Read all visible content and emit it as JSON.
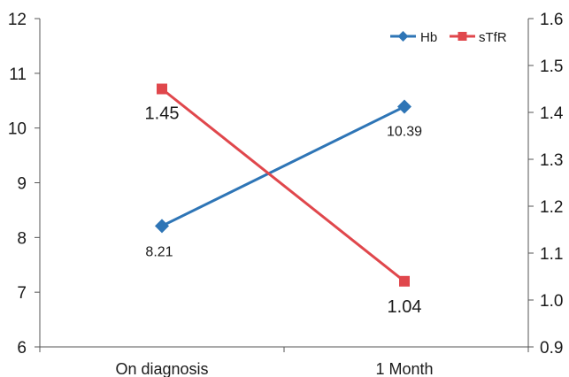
{
  "chart_data": {
    "type": "line",
    "categories": [
      "On diagnosis",
      "1 Month"
    ],
    "series": [
      {
        "name": "Hb",
        "axis": "left",
        "values": [
          8.21,
          10.39
        ],
        "color": "#2e75b6",
        "marker": "diamond",
        "labels": [
          "8.21",
          "10.39"
        ]
      },
      {
        "name": "sTfR",
        "axis": "right",
        "values": [
          1.45,
          1.04
        ],
        "color": "#e0474c",
        "marker": "square",
        "labels": [
          "1.45",
          "1.04"
        ]
      }
    ],
    "y_left": {
      "ylim": [
        6,
        12
      ],
      "ticks": [
        6,
        7,
        8,
        9,
        10,
        11,
        12
      ],
      "tick_labels": [
        "6",
        "7",
        "8",
        "9",
        "10",
        "11",
        "12"
      ]
    },
    "y_right": {
      "ylim": [
        0.9,
        1.6
      ],
      "ticks": [
        0.9,
        1.0,
        1.1,
        1.2,
        1.3,
        1.4,
        1.5,
        1.6
      ],
      "tick_labels": [
        "0.9",
        "1.0",
        "1.1",
        "1.2",
        "1.3",
        "1.4",
        "1.5",
        "1.6"
      ]
    },
    "title": "",
    "xlabel": "",
    "ylabel": "",
    "grid": false,
    "legend_position": "top-right"
  }
}
